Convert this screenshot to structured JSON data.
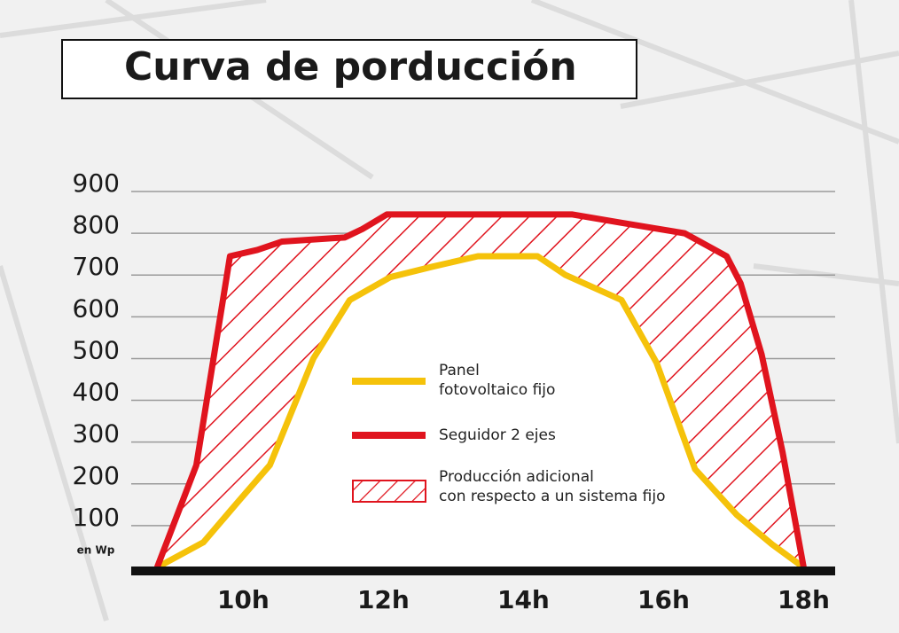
{
  "chart_data": {
    "type": "line",
    "title": "Curva de porducción",
    "y_unit_label": "en Wp",
    "xlim": [
      8.4,
      18.45
    ],
    "xticks": [
      {
        "value": 10,
        "label": "10h"
      },
      {
        "value": 12,
        "label": "12h"
      },
      {
        "value": 14,
        "label": "14h"
      },
      {
        "value": 16,
        "label": "16h"
      },
      {
        "value": 18,
        "label": "18h"
      }
    ],
    "ylim": [
      0,
      900
    ],
    "yticks": [
      100,
      200,
      300,
      400,
      500,
      600,
      700,
      800,
      900
    ],
    "grid": true,
    "series": [
      {
        "name": "Panel\nfotovoltaico fijo",
        "color": "#f5c20a",
        "x": [
          8.77,
          9.43,
          9.94,
          10.38,
          11.0,
          11.52,
          12.1,
          12.7,
          13.35,
          14.2,
          14.6,
          15.4,
          15.9,
          16.45,
          17.05,
          17.55,
          18.0
        ],
        "values": [
          0,
          60,
          160,
          245,
          500,
          640,
          695,
          720,
          745,
          745,
          700,
          640,
          490,
          235,
          125,
          55,
          0
        ]
      },
      {
        "name": "Seguidor 2 ejes",
        "color": "#e0141e",
        "x": [
          8.77,
          9.33,
          9.81,
          10.2,
          10.55,
          11.45,
          11.7,
          12.05,
          14.7,
          15.4,
          16.3,
          16.9,
          17.1,
          17.4,
          17.7,
          18.0
        ],
        "values": [
          0,
          245,
          745,
          760,
          780,
          790,
          810,
          845,
          845,
          825,
          800,
          745,
          680,
          510,
          275,
          0
        ]
      }
    ],
    "fill_between": {
      "name": "Producción adicional\ncon respecto a un sistema fijo",
      "color": "#e0141e",
      "pattern": "hatch"
    }
  }
}
